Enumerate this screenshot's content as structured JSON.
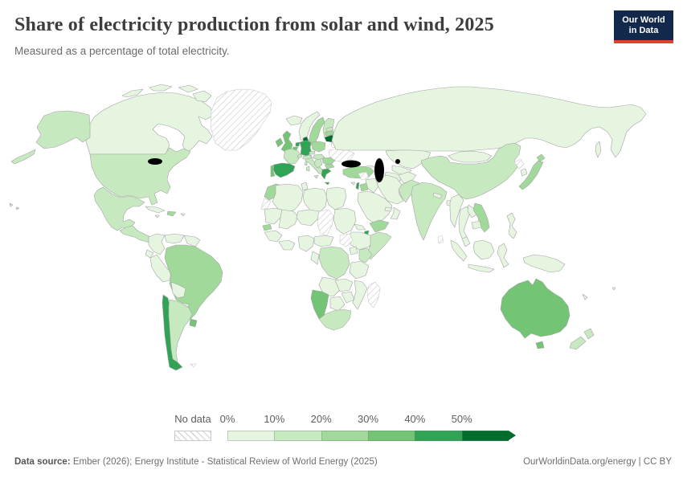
{
  "header": {
    "title": "Share of electricity production from solar and wind, 2025",
    "subtitle": "Measured as a percentage of total electricity.",
    "logo": {
      "line1": "Our World",
      "line2": "in Data",
      "bg_color": "#13294b",
      "accent_color": "#e0422e"
    }
  },
  "legend": {
    "no_data_label": "No data",
    "tick_labels": [
      "0%",
      "10%",
      "20%",
      "30%",
      "40%",
      "50%"
    ],
    "bins": [
      {
        "range": "0-10%",
        "color": "#e5f5e0"
      },
      {
        "range": "10-20%",
        "color": "#c7e9c0"
      },
      {
        "range": "20-30%",
        "color": "#a1d99b"
      },
      {
        "range": "30-40%",
        "color": "#74c476"
      },
      {
        "range": "40-50%",
        "color": "#31a354"
      },
      {
        "range": "50%+",
        "color": "#006d2c"
      }
    ]
  },
  "footer": {
    "source_label": "Data source:",
    "source_text": " Ember (2026); Energy Institute - Statistical Review of World Energy (2025)",
    "right_text": "OurWorldinData.org/energy | CC BY"
  },
  "map": {
    "ocean_color": "#ffffff",
    "border_color": "#a3a3a3",
    "no_data_style": "diagonal-hatch"
  },
  "chart_data": {
    "type": "choropleth_map",
    "title": "Share of electricity production from solar and wind, 2025",
    "unit": "% of total electricity",
    "legend_bins": [
      "0%",
      "10%",
      "20%",
      "30%",
      "40%",
      "50%+"
    ],
    "countries": {
      "canada": {
        "name": "Canada",
        "value": 7,
        "color": "#e5f5e0"
      },
      "united_states": {
        "name": "United States",
        "value": 17,
        "color": "#c7e9c0"
      },
      "mexico": {
        "name": "Mexico",
        "value": 13,
        "color": "#c7e9c0"
      },
      "central_america": {
        "name": "Central America",
        "value": 15,
        "color": "#c7e9c0"
      },
      "cuba": {
        "name": "Cuba",
        "value": 3,
        "color": "#e5f5e0"
      },
      "dominican_republic": {
        "name": "Dominican Republic",
        "value": 22,
        "color": "#a1d99b"
      },
      "jamaica": {
        "name": "Jamaica",
        "value": 6,
        "color": "#e5f5e0"
      },
      "puerto_rico": {
        "name": "Puerto Rico",
        "value": 7,
        "color": "#e5f5e0"
      },
      "greenland": {
        "name": "Greenland",
        "value": null,
        "color": null
      },
      "colombia": {
        "name": "Colombia",
        "value": 4,
        "color": "#e5f5e0"
      },
      "venezuela": {
        "name": "Venezuela",
        "value": 2,
        "color": "#e5f5e0"
      },
      "guyana": {
        "name": "Guyanas",
        "value": 1,
        "color": "#e5f5e0"
      },
      "ecuador": {
        "name": "Ecuador",
        "value": 3,
        "color": "#e5f5e0"
      },
      "peru": {
        "name": "Peru",
        "value": 8,
        "color": "#e5f5e0"
      },
      "brazil": {
        "name": "Brazil",
        "value": 26,
        "color": "#a1d99b"
      },
      "bolivia": {
        "name": "Bolivia",
        "value": 4,
        "color": "#e5f5e0"
      },
      "paraguay": {
        "name": "Paraguay",
        "value": 1,
        "color": "#e5f5e0"
      },
      "chile": {
        "name": "Chile",
        "value": 44,
        "color": "#31a354"
      },
      "argentina": {
        "name": "Argentina",
        "value": 14,
        "color": "#c7e9c0"
      },
      "uruguay": {
        "name": "Uruguay",
        "value": 36,
        "color": "#74c476"
      },
      "falkland_islands": {
        "name": "Falkland Islands",
        "value": null,
        "color": null
      },
      "iceland": {
        "name": "Iceland",
        "value": 0,
        "color": "#e5f5e0"
      },
      "norway": {
        "name": "Norway",
        "value": 9,
        "color": "#e5f5e0"
      },
      "sweden": {
        "name": "Sweden",
        "value": 24,
        "color": "#a1d99b"
      },
      "finland": {
        "name": "Finland",
        "value": 19,
        "color": "#c7e9c0"
      },
      "denmark": {
        "name": "Denmark",
        "value": 62,
        "color": "#006d2c"
      },
      "united_kingdom": {
        "name": "United Kingdom",
        "value": 38,
        "color": "#74c476"
      },
      "ireland": {
        "name": "Ireland",
        "value": 37,
        "color": "#74c476"
      },
      "netherlands": {
        "name": "Netherlands",
        "value": 44,
        "color": "#31a354"
      },
      "belgium": {
        "name": "Belgium",
        "value": 33,
        "color": "#74c476"
      },
      "germany": {
        "name": "Germany",
        "value": 44,
        "color": "#31a354"
      },
      "france": {
        "name": "France",
        "value": 16,
        "color": "#c7e9c0"
      },
      "spain": {
        "name": "Spain",
        "value": 43,
        "color": "#31a354"
      },
      "portugal": {
        "name": "Portugal",
        "value": 37,
        "color": "#74c476"
      },
      "italy": {
        "name": "Italy",
        "value": 18,
        "color": "#c7e9c0"
      },
      "switzerland": {
        "name": "Switzerland",
        "value": 12,
        "color": "#c7e9c0"
      },
      "austria": {
        "name": "Austria",
        "value": 17,
        "color": "#c7e9c0"
      },
      "czechia": {
        "name": "Czechia",
        "value": 11,
        "color": "#c7e9c0"
      },
      "poland": {
        "name": "Poland",
        "value": 24,
        "color": "#a1d99b"
      },
      "estonia": {
        "name": "Estonia",
        "value": 18,
        "color": "#c7e9c0"
      },
      "latvia": {
        "name": "Latvia",
        "value": 21,
        "color": "#a1d99b"
      },
      "lithuania": {
        "name": "Lithuania",
        "value": 56,
        "color": "#006d2c"
      },
      "belarus": {
        "name": "Belarus",
        "value": null,
        "color": null
      },
      "ukraine": {
        "name": "Ukraine",
        "value": null,
        "color": null
      },
      "hungary": {
        "name": "Hungary",
        "value": 18,
        "color": "#c7e9c0"
      },
      "romania": {
        "name": "Romania",
        "value": 21,
        "color": "#a1d99b"
      },
      "serbia": {
        "name": "Serbia",
        "value": 11,
        "color": "#c7e9c0"
      },
      "bulgaria": {
        "name": "Bulgaria",
        "value": 21,
        "color": "#a1d99b"
      },
      "greece": {
        "name": "Greece",
        "value": 42,
        "color": "#31a354"
      },
      "turkey": {
        "name": "Turkey",
        "value": 22,
        "color": "#a1d99b"
      },
      "cyprus": {
        "name": "Cyprus",
        "value": 9,
        "color": "#e5f5e0"
      },
      "russia": {
        "name": "Russia",
        "value": 1,
        "color": "#e5f5e0"
      },
      "kazakhstan": {
        "name": "Kazakhstan",
        "value": 9,
        "color": "#e5f5e0"
      },
      "uzbekistan": {
        "name": "Uzbekistan",
        "value": 3,
        "color": "#e5f5e0"
      },
      "turkmenistan": {
        "name": "Turkmenistan",
        "value": 0,
        "color": "#e5f5e0"
      },
      "azerbaijan": {
        "name": "Azerbaijan",
        "value": 1,
        "color": "#e5f5e0"
      },
      "afghanistan": {
        "name": "Afghanistan",
        "value": 2,
        "color": "#e5f5e0"
      },
      "iran": {
        "name": "Iran",
        "value": 1,
        "color": "#e5f5e0"
      },
      "iraq": {
        "name": "Iraq",
        "value": 2,
        "color": "#e5f5e0"
      },
      "syria": {
        "name": "Syria",
        "value": null,
        "color": null
      },
      "israel": {
        "name": "Israel",
        "value": 41,
        "color": "#31a354"
      },
      "jordan": {
        "name": "Jordan",
        "value": 27,
        "color": "#a1d99b"
      },
      "saudi_arabia": {
        "name": "Saudi Arabia",
        "value": 3,
        "color": "#e5f5e0"
      },
      "yemen": {
        "name": "Yemen",
        "value": 21,
        "color": "#a1d99b"
      },
      "oman": {
        "name": "Oman",
        "value": 5,
        "color": "#e5f5e0"
      },
      "uae": {
        "name": "United Arab Emirates",
        "value": 8,
        "color": "#e5f5e0"
      },
      "pakistan": {
        "name": "Pakistan",
        "value": 13,
        "color": "#c7e9c0"
      },
      "india": {
        "name": "India",
        "value": 13,
        "color": "#c7e9c0"
      },
      "nepal": {
        "name": "Nepal",
        "value": 3,
        "color": "#e5f5e0"
      },
      "bangladesh": {
        "name": "Bangladesh",
        "value": 2,
        "color": "#e5f5e0"
      },
      "sri_lanka": {
        "name": "Sri Lanka",
        "value": null,
        "color": null
      },
      "myanmar": {
        "name": "Myanmar",
        "value": 2,
        "color": "#e5f5e0"
      },
      "thailand": {
        "name": "Thailand",
        "value": 7,
        "color": "#e5f5e0"
      },
      "laos": {
        "name": "Laos",
        "value": 1,
        "color": "#e5f5e0"
      },
      "vietnam": {
        "name": "Vietnam",
        "value": 22,
        "color": "#a1d99b"
      },
      "cambodia": {
        "name": "Cambodia",
        "value": 8,
        "color": "#e5f5e0"
      },
      "malaysia": {
        "name": "Malaysia",
        "value": 3,
        "color": "#e5f5e0"
      },
      "indonesia": {
        "name": "Indonesia",
        "value": 1,
        "color": "#e5f5e0"
      },
      "philippines": {
        "name": "Philippines",
        "value": 6,
        "color": "#e5f5e0"
      },
      "china": {
        "name": "China",
        "value": 18,
        "color": "#c7e9c0"
      },
      "mongolia": {
        "name": "Mongolia",
        "value": 8,
        "color": "#e5f5e0"
      },
      "north_korea": {
        "name": "North Korea",
        "value": null,
        "color": null
      },
      "south_korea": {
        "name": "South Korea",
        "value": 8,
        "color": "#e5f5e0"
      },
      "japan": {
        "name": "Japan",
        "value": 21,
        "color": "#a1d99b"
      },
      "morocco": {
        "name": "Morocco",
        "value": 22,
        "color": "#a1d99b"
      },
      "western_sahara": {
        "name": "Western Sahara",
        "value": null,
        "color": null
      },
      "algeria": {
        "name": "Algeria",
        "value": 3,
        "color": "#e5f5e0"
      },
      "tunisia": {
        "name": "Tunisia",
        "value": 4,
        "color": "#e5f5e0"
      },
      "libya": {
        "name": "Libya",
        "value": 1,
        "color": "#e5f5e0"
      },
      "egypt": {
        "name": "Egypt",
        "value": 6,
        "color": "#e5f5e0"
      },
      "mauritania": {
        "name": "Mauritania",
        "value": 9,
        "color": "#e5f5e0"
      },
      "senegal": {
        "name": "Senegal",
        "value": 21,
        "color": "#a1d99b"
      },
      "mali": {
        "name": "Mali",
        "value": 4,
        "color": "#e5f5e0"
      },
      "niger": {
        "name": "Niger",
        "value": 2,
        "color": "#e5f5e0"
      },
      "chad": {
        "name": "Chad",
        "value": null,
        "color": null
      },
      "sudan": {
        "name": "Sudan",
        "value": 2,
        "color": "#e5f5e0"
      },
      "eritrea": {
        "name": "Eritrea",
        "value": 3,
        "color": "#e5f5e0"
      },
      "djibouti": {
        "name": "Djibouti",
        "value": 42,
        "color": "#31a354"
      },
      "ethiopia": {
        "name": "Ethiopia",
        "value": 4,
        "color": "#e5f5e0"
      },
      "somalia": {
        "name": "Somalia",
        "value": 14,
        "color": "#c7e9c0"
      },
      "south_sudan": {
        "name": "South Sudan",
        "value": null,
        "color": null
      },
      "uganda": {
        "name": "Uganda",
        "value": 2,
        "color": "#e5f5e0"
      },
      "kenya": {
        "name": "Kenya",
        "value": 17,
        "color": "#c7e9c0"
      },
      "drc": {
        "name": "Democratic Republic of Congo",
        "value": 11,
        "color": "#c7e9c0"
      },
      "guinea": {
        "name": "Guinea",
        "value": 2,
        "color": "#e5f5e0"
      },
      "ghana": {
        "name": "Ghana",
        "value": 1,
        "color": "#e5f5e0"
      },
      "nigeria": {
        "name": "Nigeria",
        "value": 1,
        "color": "#e5f5e0"
      },
      "cameroon": {
        "name": "Cameroon",
        "value": 1,
        "color": "#e5f5e0"
      },
      "gabon": {
        "name": "Gabon",
        "value": 1,
        "color": "#e5f5e0"
      },
      "tanzania": {
        "name": "Tanzania",
        "value": 3,
        "color": "#e5f5e0"
      },
      "angola": {
        "name": "Angola",
        "value": 1,
        "color": "#e5f5e0"
      },
      "zambia": {
        "name": "Zambia",
        "value": 4,
        "color": "#e5f5e0"
      },
      "mozambique": {
        "name": "Mozambique",
        "value": 1,
        "color": "#e5f5e0"
      },
      "zimbabwe": {
        "name": "Zimbabwe",
        "value": 2,
        "color": "#e5f5e0"
      },
      "botswana": {
        "name": "Botswana",
        "value": 2,
        "color": "#e5f5e0"
      },
      "namibia": {
        "name": "Namibia",
        "value": 32,
        "color": "#74c476"
      },
      "south_africa": {
        "name": "South Africa",
        "value": 14,
        "color": "#c7e9c0"
      },
      "madagascar": {
        "name": "Madagascar",
        "value": null,
        "color": null
      },
      "australia": {
        "name": "Australia",
        "value": 33,
        "color": "#74c476"
      },
      "new_zealand": {
        "name": "New Zealand",
        "value": 12,
        "color": "#c7e9c0"
      },
      "papua_new_guinea": {
        "name": "Papua New Guinea",
        "value": 1,
        "color": "#e5f5e0"
      },
      "fiji": {
        "name": "Fiji",
        "value": 2,
        "color": "#e5f5e0"
      },
      "new_caledonia": {
        "name": "New Caledonia",
        "value": 2,
        "color": "#e5f5e0"
      }
    }
  }
}
